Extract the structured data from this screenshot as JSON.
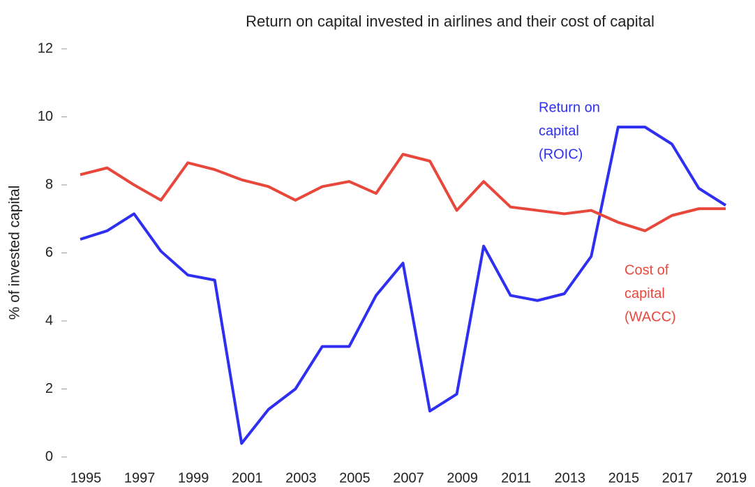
{
  "chart_data": {
    "type": "line",
    "title": "Return on capital invested in airlines and their cost of capital",
    "y_label": "% of invested capital",
    "categories": [
      "1995",
      null,
      "1997",
      null,
      "1999",
      null,
      "2001",
      null,
      "2003",
      null,
      "2005",
      null,
      "2007",
      null,
      "2009",
      null,
      "2011",
      null,
      "2013",
      null,
      "2015",
      null,
      "2017",
      null,
      "2019"
    ],
    "series": [
      {
        "name": "ROIC",
        "color": "#2e2ff0",
        "values": [
          6.4,
          6.65,
          7.15,
          6.05,
          5.35,
          5.2,
          0.4,
          1.4,
          2.0,
          3.25,
          3.25,
          4.75,
          5.7,
          1.35,
          1.85,
          6.2,
          4.75,
          4.6,
          4.8,
          5.9,
          9.7,
          9.7,
          9.2,
          7.9,
          7.4
        ]
      },
      {
        "name": "WACC",
        "color": "#e8473c",
        "values": [
          8.3,
          8.5,
          8.0,
          7.55,
          8.65,
          8.45,
          8.15,
          7.95,
          7.55,
          7.95,
          8.1,
          7.75,
          8.9,
          8.7,
          7.25,
          8.1,
          7.35,
          7.25,
          7.15,
          7.25,
          6.9,
          6.65,
          7.1,
          7.3,
          7.3
        ]
      }
    ],
    "annotations": [
      {
        "lines": [
          "Return on",
          "capital",
          "(ROIC)"
        ],
        "color": "#2e2ff0"
      },
      {
        "lines": [
          "Cost of",
          "capital",
          "(WACC)"
        ],
        "color": "#e8473c"
      }
    ],
    "ylim": [
      0,
      12
    ],
    "yticks": [
      0,
      2,
      4,
      6,
      8,
      10,
      12
    ],
    "grid": false
  }
}
